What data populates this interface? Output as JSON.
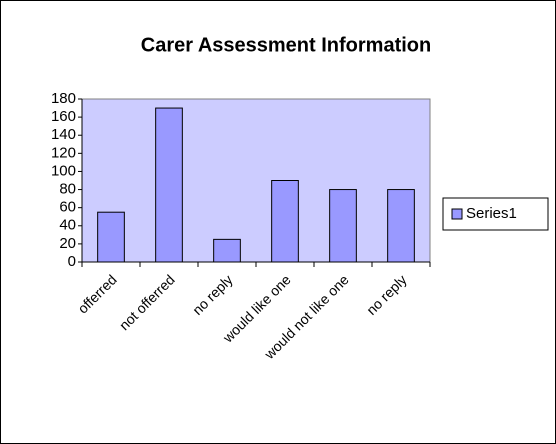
{
  "chart_data": {
    "type": "bar",
    "title": "Carer Assessment Information",
    "categories": [
      "offerred",
      "not offerred",
      "no reply",
      "would like one",
      "would not like one",
      "no reply"
    ],
    "series": [
      {
        "name": "Series1",
        "color": "#9999ff",
        "values": [
          55,
          170,
          25,
          90,
          80,
          80
        ]
      }
    ],
    "ylim": [
      0,
      180
    ],
    "yticks": [
      0,
      20,
      40,
      60,
      80,
      100,
      120,
      140,
      160,
      180
    ],
    "plot_background": "#ccccff",
    "legend": "right"
  }
}
